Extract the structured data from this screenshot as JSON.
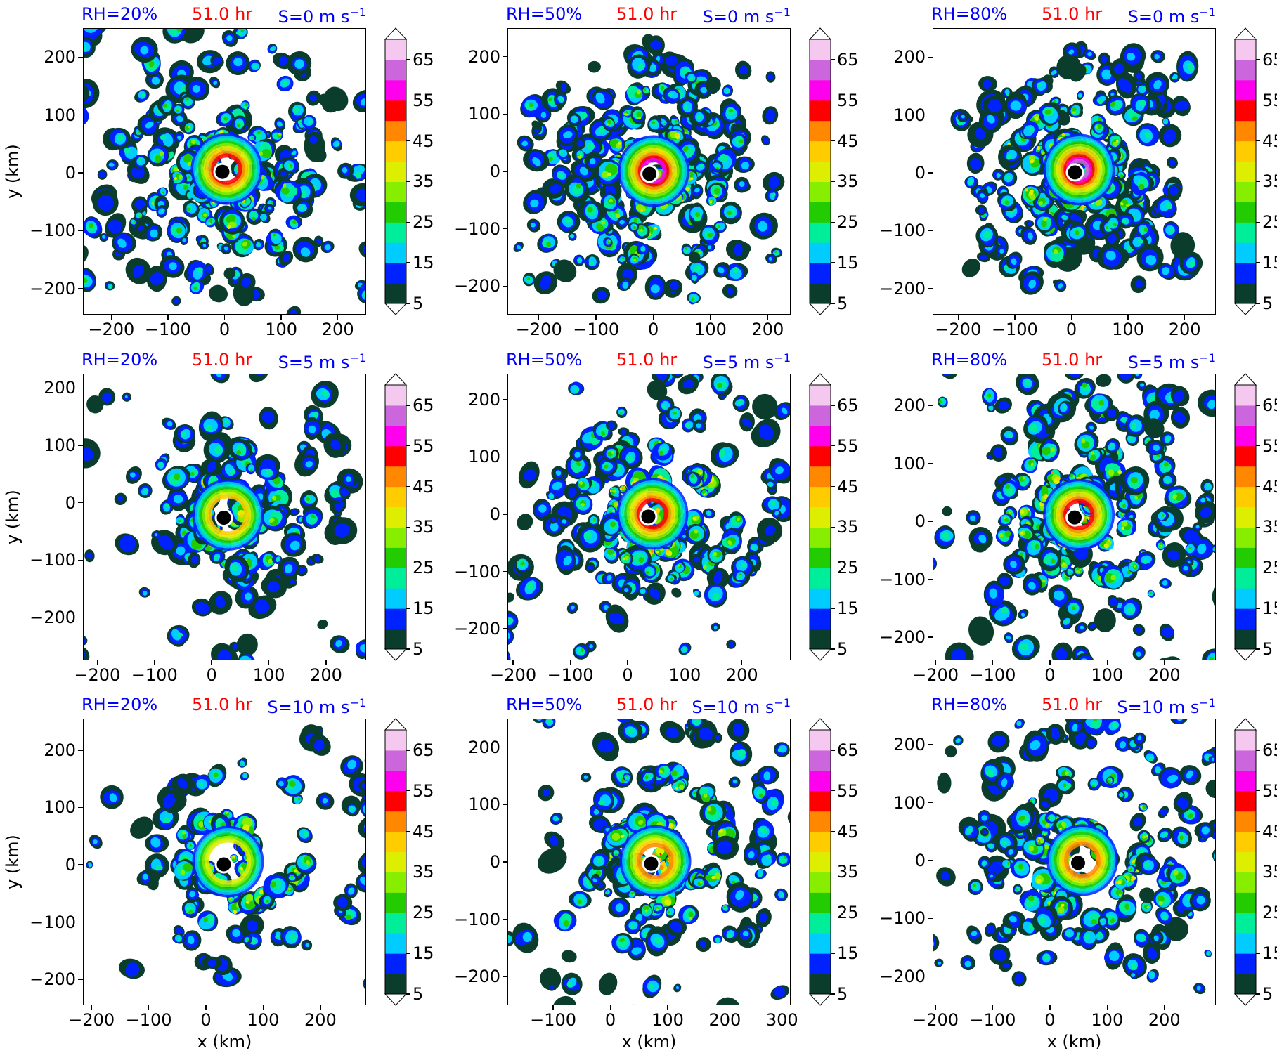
{
  "chart_data": {
    "type": "heatmap",
    "xlabel": "x (km)",
    "ylabel": "y (km)",
    "colorbar": {
      "levels": [
        5,
        10,
        15,
        20,
        25,
        30,
        35,
        40,
        45,
        50,
        55,
        60,
        65,
        70
      ],
      "tick_labels": [
        "5",
        "15",
        "25",
        "35",
        "45",
        "55",
        "65"
      ],
      "extend": "both",
      "colors": [
        "#0b3d2c",
        "#0022ff",
        "#00ccff",
        "#00ee99",
        "#22cc00",
        "#88ee00",
        "#ddee00",
        "#ffcc00",
        "#ff8800",
        "#ff0000",
        "#ff00ee",
        "#cc66dd",
        "#f5c8f0"
      ]
    },
    "panels": [
      {
        "rh_label": "RH=20%",
        "time_label": "51.0 hr",
        "shear_label": "S=0 m s",
        "shear_exp": "−1",
        "xlim": [
          -250,
          250
        ],
        "ylim": [
          -245,
          250
        ],
        "xticks": [
          "−200",
          "−100",
          "0",
          "100",
          "200"
        ],
        "xtick_vals": [
          -200,
          -100,
          0,
          100,
          200
        ],
        "yticks": [
          "200",
          "100",
          "0",
          "−100",
          "−200"
        ],
        "ytick_vals": [
          200,
          100,
          0,
          -100,
          -200
        ],
        "center": [
          -5,
          3
        ],
        "structure": "open-spiral"
      },
      {
        "rh_label": "RH=50%",
        "time_label": "51.0 hr",
        "shear_label": "S=0 m s",
        "shear_exp": "−1",
        "xlim": [
          -255,
          240
        ],
        "ylim": [
          -250,
          250
        ],
        "xticks": [
          "−200",
          "−100",
          "0",
          "100",
          "200"
        ],
        "xtick_vals": [
          -200,
          -100,
          0,
          100,
          200
        ],
        "yticks": [
          "200",
          "100",
          "0",
          "−100",
          "−200"
        ],
        "ytick_vals": [
          200,
          100,
          0,
          -100,
          -200
        ],
        "center": [
          -8,
          -3
        ],
        "structure": "strong-spiral"
      },
      {
        "rh_label": "RH=80%",
        "time_label": "51.0 hr",
        "shear_label": "S=0 m s",
        "shear_exp": "−1",
        "xlim": [
          -245,
          255
        ],
        "ylim": [
          -245,
          250
        ],
        "xticks": [
          "−200",
          "−100",
          "0",
          "100",
          "200"
        ],
        "xtick_vals": [
          -200,
          -100,
          0,
          100,
          200
        ],
        "yticks": [
          "200",
          "100",
          "0",
          "−100",
          "−200"
        ],
        "ytick_vals": [
          200,
          100,
          0,
          -100,
          -200
        ],
        "center": [
          5,
          2
        ],
        "structure": "intense-spiral"
      },
      {
        "rh_label": "RH=20%",
        "time_label": "51.0 hr",
        "shear_label": "S=5 m s",
        "shear_exp": "−1",
        "xlim": [
          -225,
          270
        ],
        "ylim": [
          -275,
          225
        ],
        "xticks": [
          "−200",
          "−100",
          "0",
          "100",
          "200"
        ],
        "xtick_vals": [
          -200,
          -100,
          0,
          100,
          200
        ],
        "yticks": [
          "200",
          "100",
          "0",
          "−100",
          "−200"
        ],
        "ytick_vals": [
          200,
          100,
          0,
          -100,
          -200
        ],
        "center": [
          20,
          -25
        ],
        "structure": "sheared-weak"
      },
      {
        "rh_label": "RH=50%",
        "time_label": "51.0 hr",
        "shear_label": "S=5 m s",
        "shear_exp": "−1",
        "xlim": [
          -210,
          285
        ],
        "ylim": [
          -255,
          245
        ],
        "xticks": [
          "−200",
          "−100",
          "0",
          "100",
          "200"
        ],
        "xtick_vals": [
          -200,
          -100,
          0,
          100,
          200
        ],
        "yticks": [
          "200",
          "100",
          "0",
          "−100",
          "−200"
        ],
        "ytick_vals": [
          200,
          100,
          0,
          -100,
          -200
        ],
        "center": [
          35,
          -3
        ],
        "structure": "sheared-moderate"
      },
      {
        "rh_label": "RH=80%",
        "time_label": "51.0 hr",
        "shear_label": "S=5 m s",
        "shear_exp": "−1",
        "xlim": [
          -205,
          290
        ],
        "ylim": [
          -240,
          255
        ],
        "xticks": [
          "−200",
          "−100",
          "0",
          "100",
          "200"
        ],
        "xtick_vals": [
          -200,
          -100,
          0,
          100,
          200
        ],
        "yticks": [
          "200",
          "100",
          "0",
          "−100",
          "−200"
        ],
        "ytick_vals": [
          200,
          100,
          0,
          -100,
          -200
        ],
        "center": [
          42,
          8
        ],
        "structure": "sheared-strong"
      },
      {
        "rh_label": "RH=20%",
        "time_label": "51.0 hr",
        "shear_label": "S=10 m s",
        "shear_exp": "−1",
        "xlim": [
          -215,
          280
        ],
        "ylim": [
          -245,
          255
        ],
        "xticks": [
          "−200",
          "−100",
          "0",
          "100",
          "200"
        ],
        "xtick_vals": [
          -200,
          -100,
          0,
          100,
          200
        ],
        "yticks": [
          "200",
          "100",
          "0",
          "−100",
          "−200"
        ],
        "ytick_vals": [
          200,
          100,
          0,
          -100,
          -200
        ],
        "center": [
          30,
          2
        ],
        "structure": "scattered"
      },
      {
        "rh_label": "RH=50%",
        "time_label": "51.0 hr",
        "shear_label": "S=10 m s",
        "shear_exp": "−1",
        "xlim": [
          -180,
          315
        ],
        "ylim": [
          -250,
          250
        ],
        "xticks": [
          "−100",
          "0",
          "100",
          "200",
          "300"
        ],
        "xtick_vals": [
          -100,
          0,
          100,
          200,
          300
        ],
        "yticks": [
          "200",
          "100",
          "0",
          "−100",
          "−200"
        ],
        "ytick_vals": [
          200,
          100,
          0,
          -100,
          -200
        ],
        "center": [
          70,
          -2
        ],
        "structure": "downshear-blob"
      },
      {
        "rh_label": "RH=80%",
        "time_label": "51.0 hr",
        "shear_label": "S=10 m s",
        "shear_exp": "−1",
        "xlim": [
          -205,
          290
        ],
        "ylim": [
          -250,
          245
        ],
        "xticks": [
          "−200",
          "−100",
          "0",
          "100",
          "200"
        ],
        "xtick_vals": [
          -200,
          -100,
          0,
          100,
          200
        ],
        "yticks": [
          "200",
          "100",
          "0",
          "−100",
          "−200"
        ],
        "ytick_vals": [
          200,
          100,
          0,
          -100,
          -200
        ],
        "center": [
          48,
          -3
        ],
        "structure": "downshear-arc"
      }
    ]
  }
}
